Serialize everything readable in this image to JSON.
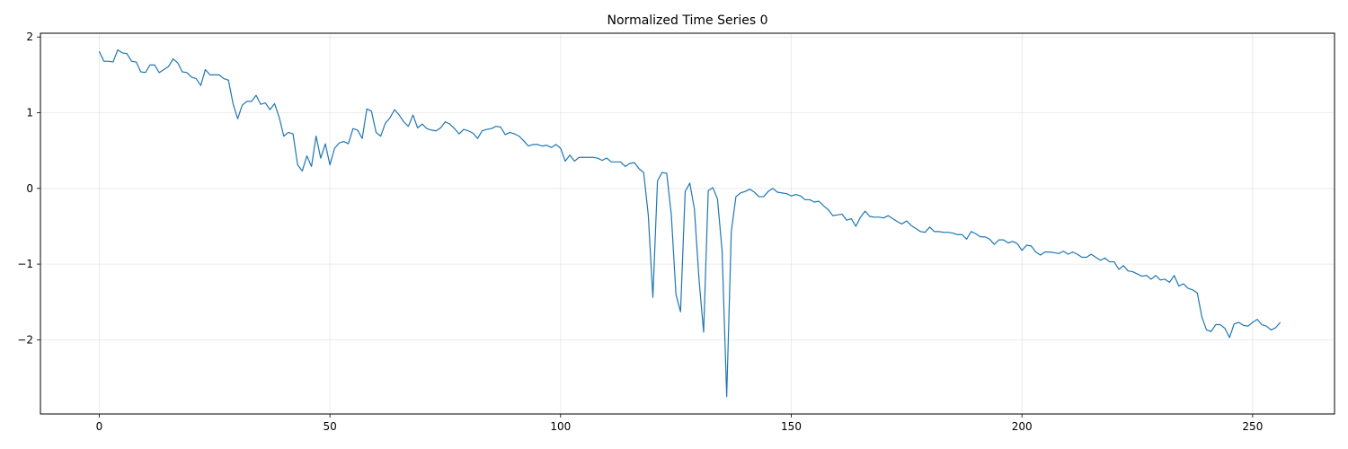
{
  "chart_data": {
    "type": "line",
    "title": "Normalized Time Series 0",
    "xlabel": "",
    "ylabel": "",
    "xlim": [
      -12.75,
      267.75
    ],
    "ylim": [
      -2.98,
      2.05
    ],
    "x_ticks": [
      0,
      50,
      100,
      150,
      200,
      250
    ],
    "x_tick_labels": [
      "0",
      "50",
      "100",
      "150",
      "200",
      "250"
    ],
    "y_ticks": [
      -2,
      -1,
      0,
      1,
      2
    ],
    "y_tick_labels": [
      "−2",
      "−1",
      "0",
      "1",
      "2"
    ],
    "grid": true,
    "series": [
      {
        "color": "#1f77b4",
        "x_start": 0,
        "x_step": 1,
        "values": [
          1.81,
          1.68,
          1.68,
          1.67,
          1.83,
          1.79,
          1.78,
          1.68,
          1.67,
          1.54,
          1.53,
          1.63,
          1.63,
          1.53,
          1.57,
          1.61,
          1.71,
          1.66,
          1.54,
          1.53,
          1.47,
          1.45,
          1.36,
          1.57,
          1.5,
          1.5,
          1.5,
          1.45,
          1.43,
          1.12,
          0.92,
          1.1,
          1.15,
          1.15,
          1.23,
          1.11,
          1.13,
          1.04,
          1.12,
          0.94,
          0.69,
          0.74,
          0.72,
          0.31,
          0.23,
          0.43,
          0.29,
          0.69,
          0.4,
          0.59,
          0.31,
          0.53,
          0.6,
          0.62,
          0.59,
          0.79,
          0.77,
          0.66,
          1.05,
          1.02,
          0.74,
          0.69,
          0.86,
          0.93,
          1.04,
          0.97,
          0.88,
          0.82,
          0.97,
          0.8,
          0.85,
          0.79,
          0.77,
          0.76,
          0.8,
          0.88,
          0.85,
          0.79,
          0.72,
          0.78,
          0.76,
          0.73,
          0.66,
          0.76,
          0.78,
          0.79,
          0.82,
          0.81,
          0.71,
          0.74,
          0.72,
          0.69,
          0.63,
          0.56,
          0.58,
          0.58,
          0.56,
          0.57,
          0.54,
          0.58,
          0.53,
          0.36,
          0.44,
          0.36,
          0.41,
          0.41,
          0.41,
          0.41,
          0.4,
          0.37,
          0.4,
          0.35,
          0.35,
          0.35,
          0.29,
          0.33,
          0.34,
          0.26,
          0.21,
          -0.35,
          -1.44,
          0.1,
          0.21,
          0.2,
          -0.35,
          -1.4,
          -1.63,
          -0.04,
          0.07,
          -0.27,
          -1.2,
          -1.9,
          -0.03,
          0.01,
          -0.14,
          -0.82,
          -2.75,
          -0.57,
          -0.11,
          -0.06,
          -0.04,
          -0.01,
          -0.05,
          -0.11,
          -0.11,
          -0.04,
          0.0,
          -0.05,
          -0.06,
          -0.07,
          -0.1,
          -0.08,
          -0.1,
          -0.15,
          -0.15,
          -0.18,
          -0.17,
          -0.23,
          -0.28,
          -0.36,
          -0.35,
          -0.34,
          -0.42,
          -0.4,
          -0.5,
          -0.38,
          -0.3,
          -0.37,
          -0.38,
          -0.38,
          -0.39,
          -0.36,
          -0.4,
          -0.44,
          -0.47,
          -0.43,
          -0.49,
          -0.53,
          -0.57,
          -0.58,
          -0.51,
          -0.57,
          -0.57,
          -0.58,
          -0.58,
          -0.59,
          -0.61,
          -0.61,
          -0.67,
          -0.57,
          -0.6,
          -0.64,
          -0.64,
          -0.67,
          -0.74,
          -0.68,
          -0.68,
          -0.72,
          -0.7,
          -0.73,
          -0.82,
          -0.75,
          -0.76,
          -0.84,
          -0.88,
          -0.84,
          -0.84,
          -0.85,
          -0.86,
          -0.83,
          -0.87,
          -0.84,
          -0.87,
          -0.91,
          -0.91,
          -0.87,
          -0.91,
          -0.95,
          -0.92,
          -0.97,
          -0.97,
          -1.07,
          -1.02,
          -1.09,
          -1.1,
          -1.13,
          -1.16,
          -1.15,
          -1.2,
          -1.15,
          -1.21,
          -1.2,
          -1.24,
          -1.15,
          -1.29,
          -1.26,
          -1.32,
          -1.34,
          -1.38,
          -1.7,
          -1.87,
          -1.89,
          -1.8,
          -1.8,
          -1.85,
          -1.97,
          -1.79,
          -1.77,
          -1.81,
          -1.82,
          -1.77,
          -1.73,
          -1.8,
          -1.82,
          -1.87,
          -1.84,
          -1.77
        ]
      }
    ]
  }
}
